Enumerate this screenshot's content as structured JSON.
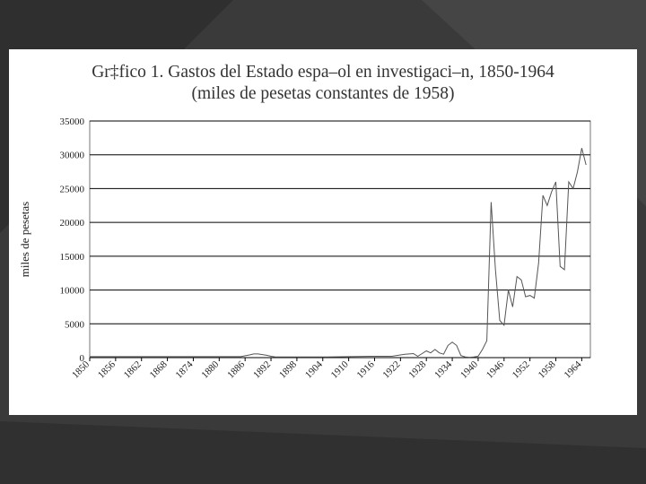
{
  "slide": {
    "background": "#3a3a3a",
    "shape_colors": [
      "#2f2f2f",
      "#454545",
      "#3c3c3c"
    ]
  },
  "chart_data": {
    "type": "line",
    "title": "Gr‡fico 1. Gastos del Estado espa–ol en investigaci–n, 1850-1964",
    "subtitle": "(miles de pesetas constantes de 1958)",
    "xlabel": "",
    "ylabel": "miles de pesetas",
    "xlim": [
      1850,
      1966
    ],
    "ylim": [
      0,
      35000
    ],
    "yticks": [
      0,
      5000,
      10000,
      15000,
      20000,
      25000,
      30000,
      35000
    ],
    "ytick_labels": [
      "0",
      "5000",
      "10000",
      "15000",
      "20000",
      "25000",
      "30000",
      "35000"
    ],
    "xticks": [
      1850,
      1856,
      1862,
      1868,
      1874,
      1880,
      1886,
      1892,
      1898,
      1904,
      1910,
      1916,
      1922,
      1928,
      1934,
      1940,
      1946,
      1952,
      1958,
      1964
    ],
    "xtick_labels": [
      "1850",
      "1856",
      "1862",
      "1868",
      "1874",
      "1880",
      "1886",
      "1892",
      "1898",
      "1904",
      "1910",
      "1916",
      "1922",
      "1928",
      "1934",
      "1940",
      "1946",
      "1952",
      "1958",
      "1964"
    ],
    "grid": "horizontal",
    "line_color": "#555555",
    "series": [
      {
        "x": [
          1850,
          1855,
          1860,
          1865,
          1870,
          1875,
          1880,
          1885,
          1887,
          1888,
          1889,
          1890,
          1891,
          1892,
          1893,
          1900,
          1905,
          1910,
          1915,
          1920,
          1923,
          1925,
          1926,
          1927,
          1928,
          1929,
          1930,
          1931,
          1932,
          1933,
          1934,
          1935,
          1936,
          1937,
          1938,
          1939,
          1940,
          1941,
          1942,
          1943,
          1944,
          1945,
          1946,
          1947,
          1948,
          1949,
          1950,
          1951,
          1952,
          1953,
          1954,
          1955,
          1956,
          1957,
          1958,
          1959,
          1960,
          1961,
          1962,
          1963,
          1964,
          1965
        ],
        "y": [
          150,
          150,
          150,
          150,
          150,
          150,
          150,
          150,
          400,
          550,
          550,
          450,
          350,
          200,
          100,
          100,
          100,
          150,
          200,
          200,
          500,
          600,
          200,
          600,
          1000,
          700,
          1200,
          700,
          500,
          1800,
          2300,
          1800,
          300,
          100,
          50,
          100,
          200,
          1200,
          2500,
          23000,
          13000,
          5500,
          4800,
          10000,
          7500,
          12000,
          11500,
          9000,
          9200,
          8800,
          14000,
          24000,
          22500,
          24500,
          26000,
          13500,
          13000,
          26000,
          25000,
          27500,
          31000,
          28500
        ]
      }
    ]
  }
}
